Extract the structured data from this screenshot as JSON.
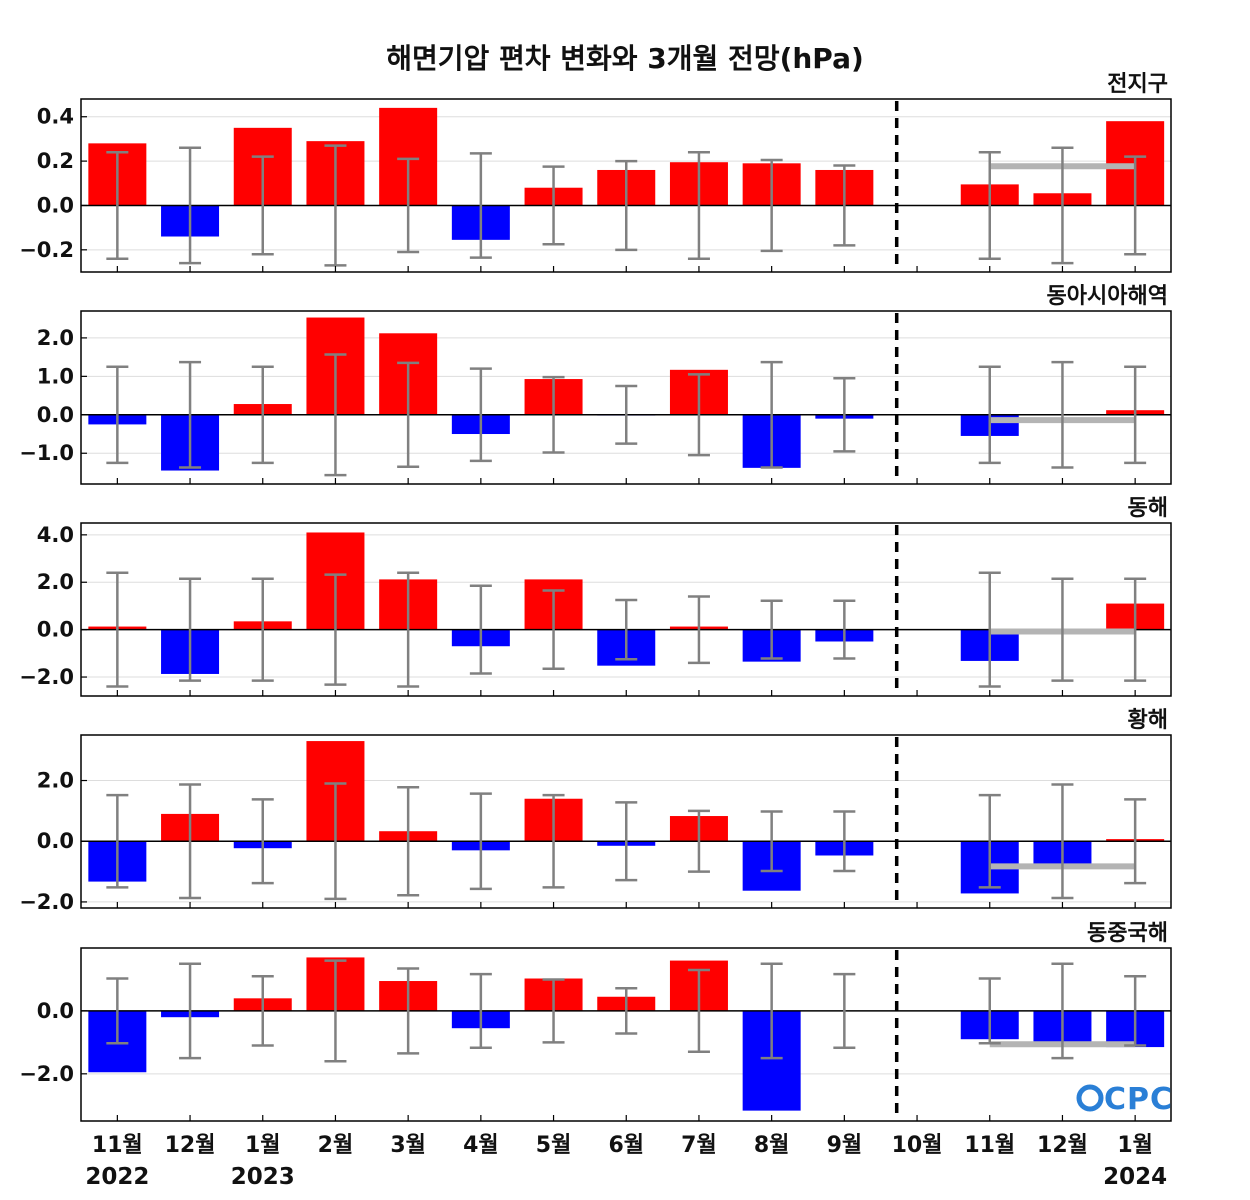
{
  "title": "해면기압 편차 변화와 3개월 전망(hPa)",
  "logo_text": "CPC",
  "months": [
    "11월",
    "12월",
    "1월",
    "2월",
    "3월",
    "4월",
    "5월",
    "6월",
    "7월",
    "8월",
    "9월",
    "10월",
    "11월",
    "12월",
    "1월"
  ],
  "years": [
    {
      "label": "2022",
      "month_index": 0
    },
    {
      "label": "2023",
      "month_index": 2
    },
    {
      "label": "2024",
      "month_index": 14
    }
  ],
  "forecast_divider_after_index": 10,
  "colors": {
    "positive": "#ff0000",
    "negative": "#0000ff",
    "error_bar": "#808080",
    "forecast_line": "#b4b4b4",
    "gridline": "#dddddd"
  },
  "chart_data": [
    {
      "type": "bar",
      "name": "전지구",
      "ylim": [
        -0.3,
        0.48
      ],
      "yticks": [
        -0.2,
        0.0,
        0.2,
        0.4
      ],
      "ytick_labels": [
        "−0.2",
        "0.0",
        "0.2",
        "0.4"
      ],
      "values": [
        0.28,
        -0.14,
        0.35,
        0.29,
        0.44,
        -0.155,
        0.08,
        0.16,
        0.195,
        0.19,
        0.16,
        0.0,
        0.095,
        0.055,
        0.38
      ],
      "error_bars": [
        0.24,
        0.26,
        0.22,
        0.27,
        0.21,
        0.235,
        0.175,
        0.2,
        0.24,
        0.205,
        0.18,
        null,
        0.24,
        0.26,
        0.22
      ],
      "forecast_mean": 0.177
    },
    {
      "type": "bar",
      "name": "동아시아해역",
      "ylim": [
        -1.8,
        2.7
      ],
      "yticks": [
        -1.0,
        0.0,
        1.0,
        2.0
      ],
      "ytick_labels": [
        "−1.0",
        "0.0",
        "1.0",
        "2.0"
      ],
      "values": [
        -0.25,
        -1.45,
        0.28,
        2.53,
        2.12,
        -0.5,
        0.93,
        -0.02,
        1.17,
        -1.38,
        -0.1,
        0.0,
        -0.55,
        0.0,
        0.12
      ],
      "error_bars": [
        1.25,
        1.37,
        1.25,
        1.57,
        1.35,
        1.2,
        0.98,
        0.75,
        1.05,
        1.37,
        0.95,
        null,
        1.25,
        1.37,
        1.25
      ],
      "forecast_mean": -0.14
    },
    {
      "type": "bar",
      "name": "동해",
      "ylim": [
        -2.8,
        4.5
      ],
      "yticks": [
        -2.0,
        0.0,
        2.0,
        4.0
      ],
      "ytick_labels": [
        "−2.0",
        "0.0",
        "2.0",
        "4.0"
      ],
      "values": [
        0.13,
        -1.87,
        0.35,
        4.1,
        2.12,
        -0.7,
        2.12,
        -1.52,
        0.13,
        -1.35,
        -0.5,
        0.0,
        -1.32,
        0.0,
        1.1
      ],
      "error_bars": [
        2.4,
        2.15,
        2.15,
        2.32,
        2.4,
        1.85,
        1.65,
        1.25,
        1.4,
        1.22,
        1.22,
        null,
        2.4,
        2.15,
        2.15
      ],
      "forecast_mean": -0.08
    },
    {
      "type": "bar",
      "name": "황해",
      "ylim": [
        -2.2,
        3.5
      ],
      "yticks": [
        -2.0,
        0.0,
        2.0
      ],
      "ytick_labels": [
        "−2.0",
        "0.0",
        "2.0"
      ],
      "values": [
        -1.33,
        0.9,
        -0.23,
        3.3,
        0.33,
        -0.3,
        1.4,
        -0.15,
        0.83,
        -1.63,
        -0.47,
        0.0,
        -1.72,
        -0.83,
        0.07
      ],
      "error_bars": [
        1.52,
        1.87,
        1.38,
        1.9,
        1.78,
        1.57,
        1.52,
        1.28,
        1.0,
        0.98,
        0.98,
        null,
        1.52,
        1.87,
        1.38
      ],
      "forecast_mean": -0.83
    },
    {
      "type": "bar",
      "name": "동중국해",
      "ylim": [
        -3.5,
        2.0
      ],
      "yticks": [
        -2.0,
        0.0
      ],
      "ytick_labels": [
        "−2.0",
        "0.0"
      ],
      "values": [
        -1.95,
        -0.2,
        0.4,
        1.7,
        0.95,
        -0.55,
        1.03,
        0.45,
        1.6,
        -3.17,
        0.0,
        0.0,
        -0.9,
        -1.13,
        -1.15
      ],
      "error_bars": [
        1.03,
        1.5,
        1.1,
        1.6,
        1.35,
        1.17,
        1.0,
        0.72,
        1.3,
        1.5,
        1.17,
        null,
        1.03,
        1.5,
        1.1
      ],
      "forecast_mean": -1.06
    }
  ]
}
